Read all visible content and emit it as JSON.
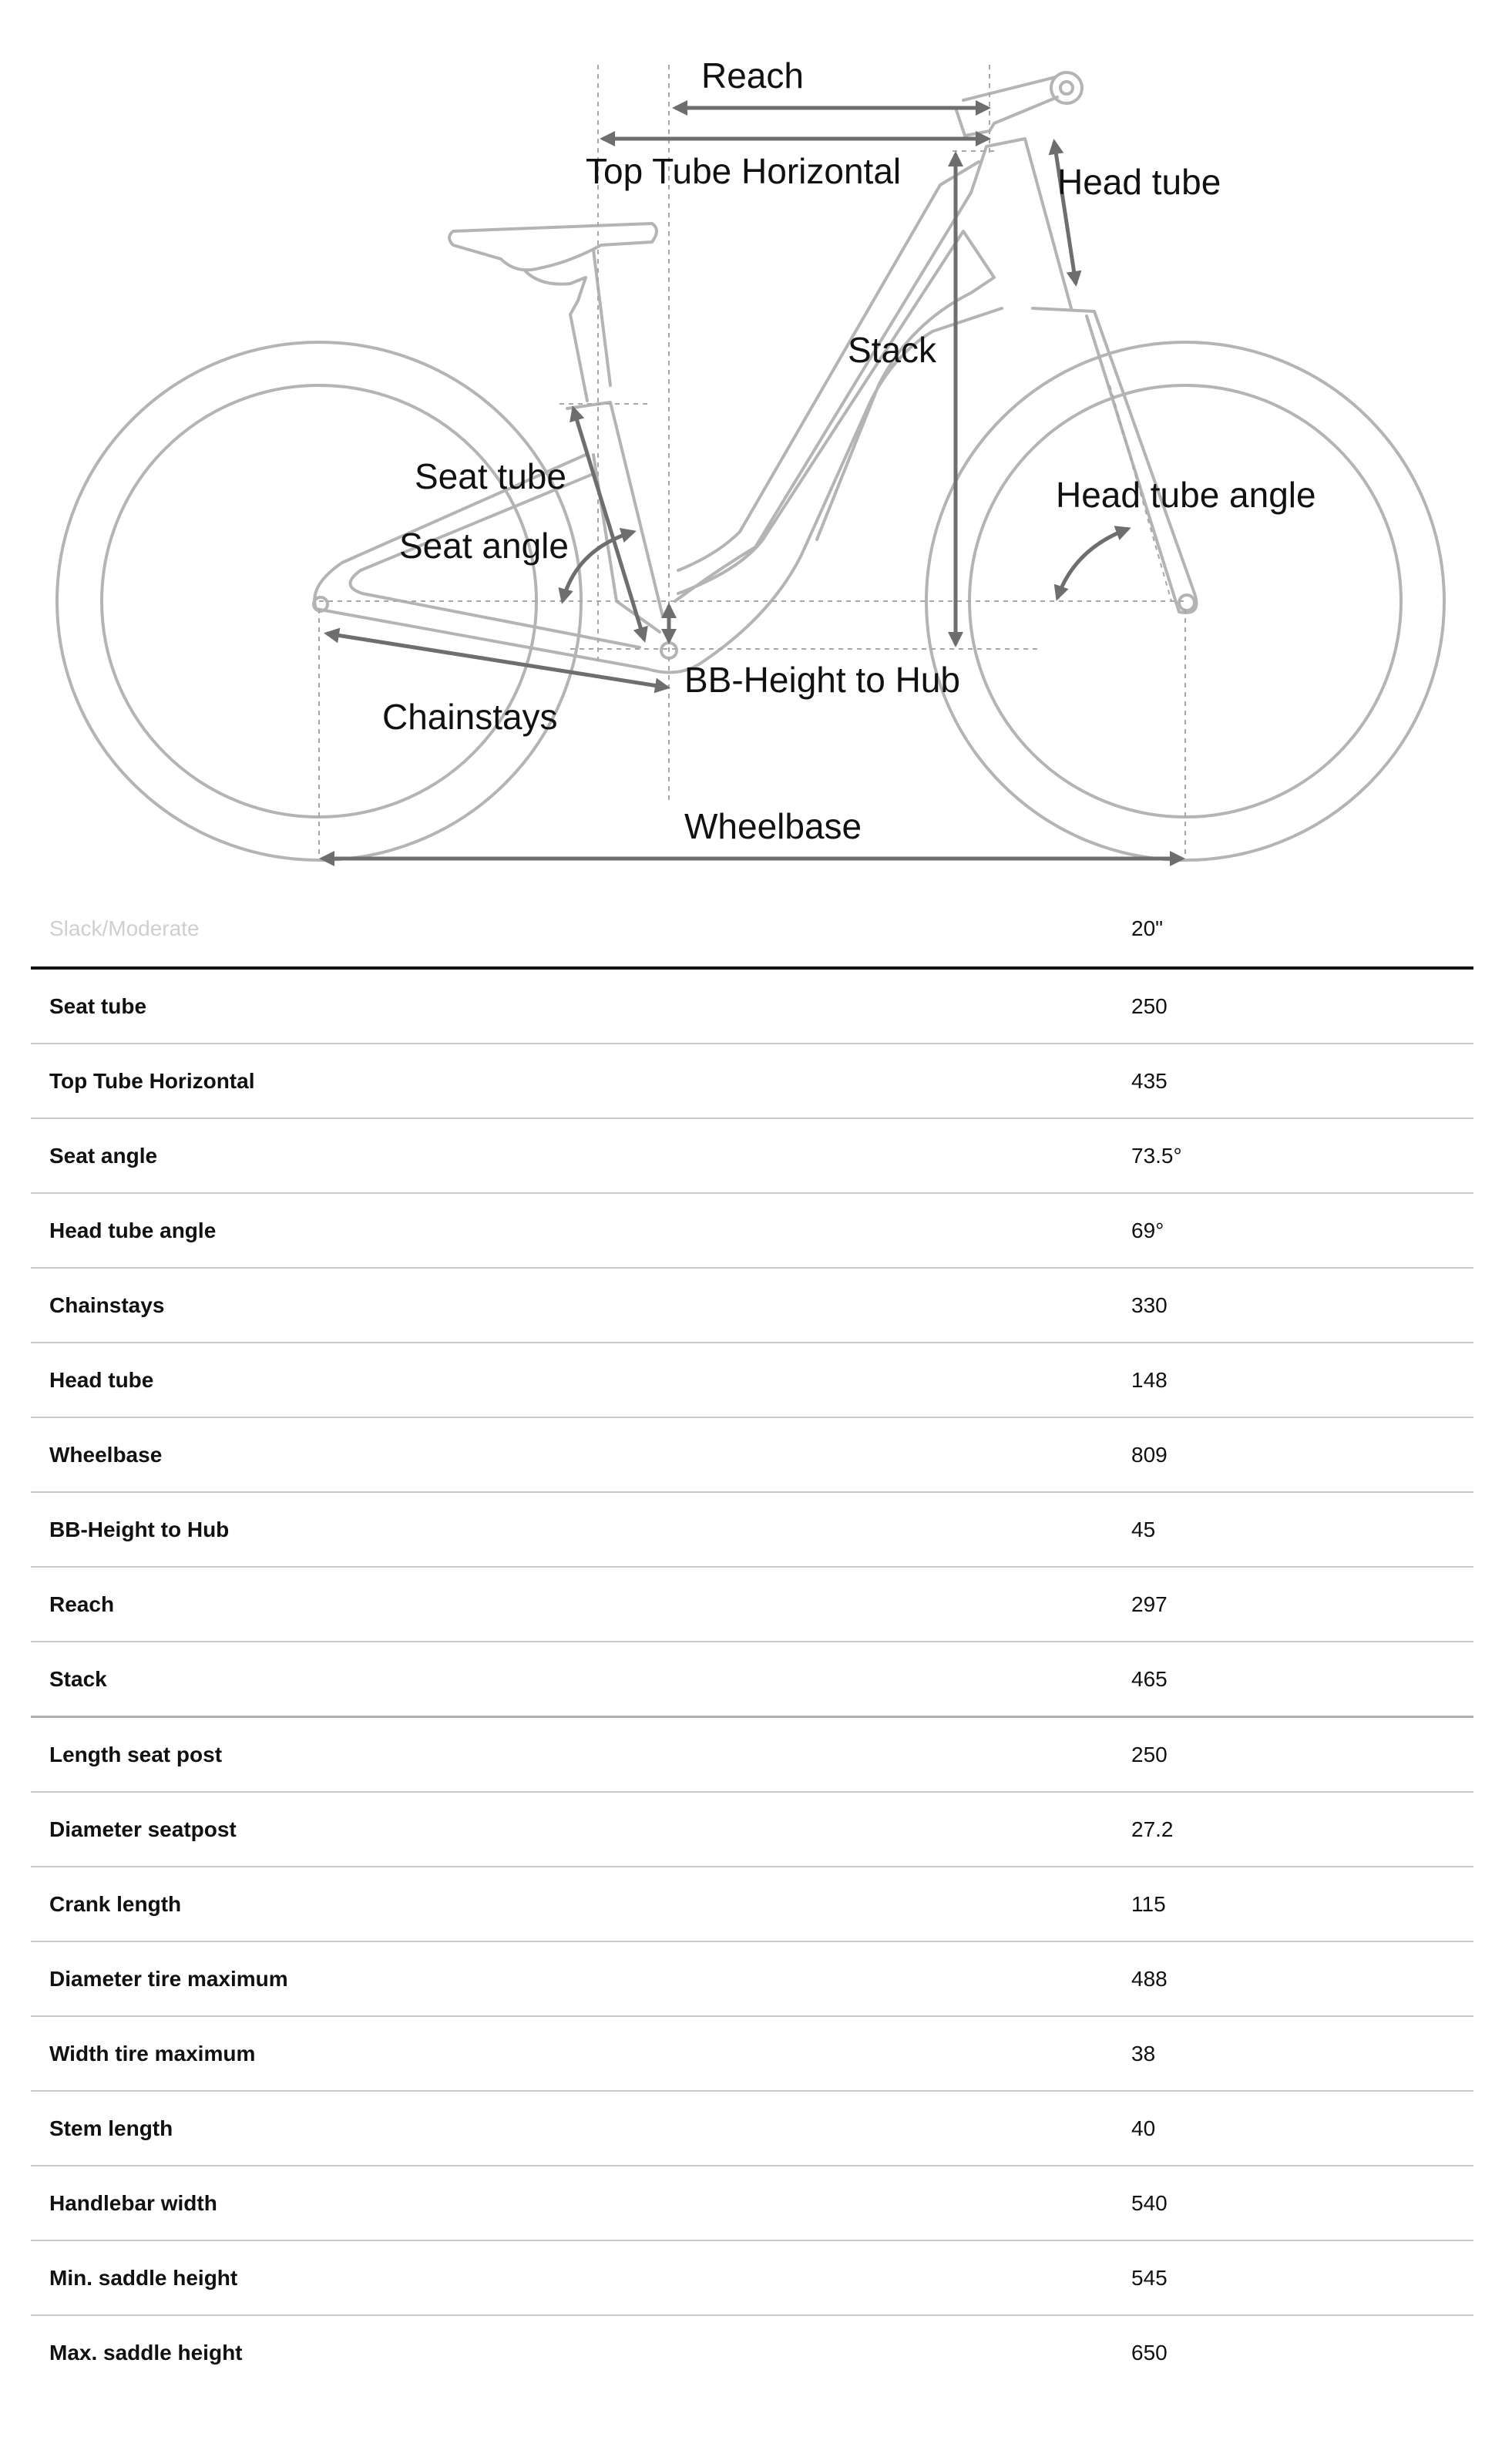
{
  "diagram": {
    "labels": {
      "reach": "Reach",
      "top_tube_horizontal": "Top Tube Horizontal",
      "head_tube": "Head tube",
      "stack": "Stack",
      "seat_tube": "Seat tube",
      "seat_angle": "Seat angle",
      "head_tube_angle": "Head tube angle",
      "bb_height": "BB-Height to Hub",
      "chainstays": "Chainstays",
      "wheelbase": "Wheelbase"
    },
    "colors": {
      "frame": "#b4b4b4",
      "dimension": "#6e6e6e"
    }
  },
  "table": {
    "header": {
      "label": "Slack/Moderate",
      "size": "20\""
    },
    "rows": [
      {
        "label": "Seat tube",
        "value": "250"
      },
      {
        "label": "Top Tube Horizontal",
        "value": "435"
      },
      {
        "label": "Seat angle",
        "value": "73.5°"
      },
      {
        "label": "Head tube angle",
        "value": "69°"
      },
      {
        "label": "Chainstays",
        "value": "330"
      },
      {
        "label": "Head tube",
        "value": "148"
      },
      {
        "label": "Wheelbase",
        "value": "809"
      },
      {
        "label": "BB-Height to Hub",
        "value": "45"
      },
      {
        "label": "Reach",
        "value": "297"
      },
      {
        "label": "Stack",
        "value": "465"
      },
      {
        "label": "Length seat post",
        "value": "250"
      },
      {
        "label": "Diameter seatpost",
        "value": "27.2"
      },
      {
        "label": "Crank length",
        "value": "115"
      },
      {
        "label": "Diameter tire maximum",
        "value": "488"
      },
      {
        "label": "Width tire maximum",
        "value": "38"
      },
      {
        "label": "Stem length",
        "value": "40"
      },
      {
        "label": "Handlebar width",
        "value": "540"
      },
      {
        "label": "Min. saddle height",
        "value": "545"
      },
      {
        "label": "Max. saddle height",
        "value": "650"
      }
    ]
  }
}
